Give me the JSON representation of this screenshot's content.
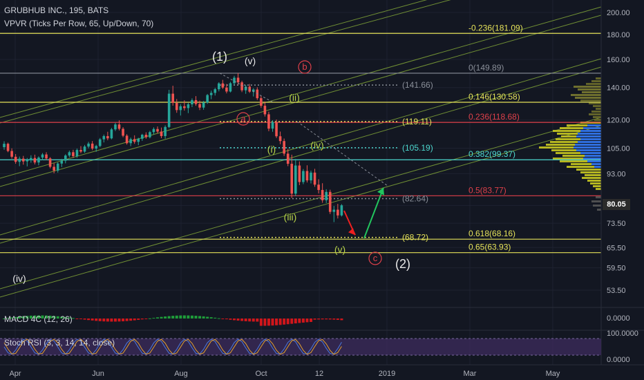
{
  "header": {
    "title": "GRUBHUB INC., 195, BATS",
    "subtitle": "VPVR (Ticks Per Row, 65, Up/Down, 70)"
  },
  "indicators": {
    "macd_label": "MACD 4C (12, 26)",
    "stoch_label": "Stoch RSI (3, 3, 14, 14, close)"
  },
  "colors": {
    "background": "#131722",
    "fib_yellow": "#e6e35a",
    "fib_cyan": "#4dd9d0",
    "fib_red": "#e0404a",
    "channel": "#8fb83a",
    "candle_up": "#26a69a",
    "candle_down": "#ef5350",
    "wave_green": "#b8d44a",
    "arrow_green": "#22c55e",
    "arrow_red": "#ef2020",
    "vpvr_yellow": "#c8c820",
    "vpvr_blue": "#2f6fdf",
    "stoch_bg": "#3b2a5a"
  },
  "current_price": "80.05",
  "chart_data": {
    "type": "candlestick",
    "title": "GRUBHUB INC., 195, BATS",
    "price_axis": {
      "ticks": [
        "200.00",
        "180.00",
        "160.00",
        "140.00",
        "120.00",
        "105.00",
        "93.00",
        "80.00",
        "73.50",
        "65.50",
        "59.50",
        "53.50"
      ],
      "scale": "log",
      "range": [
        50,
        210
      ]
    },
    "time_axis": {
      "ticks": [
        "Apr",
        "Jun",
        "Aug",
        "Oct",
        "12",
        "2019",
        "Mar",
        "May"
      ]
    },
    "macd_axis": {
      "ticks": [
        "0.0000"
      ]
    },
    "stoch_axis": {
      "ticks": [
        "100.0000",
        "0.0000"
      ]
    },
    "fib_levels": [
      {
        "label": "-0.236(181.09)",
        "price": 181.09,
        "color": "fib_yellow"
      },
      {
        "label": "0(149.89)",
        "price": 149.89,
        "color": "gray"
      },
      {
        "label": "0.146(130.58)",
        "price": 130.58,
        "color": "fib_yellow"
      },
      {
        "label": "0.236(118.68)",
        "price": 118.68,
        "color": "fib_red"
      },
      {
        "label": "0.382(99.37)",
        "price": 99.37,
        "color": "fib_cyan"
      },
      {
        "label": "0.5(83.77)",
        "price": 83.77,
        "color": "fib_red"
      },
      {
        "label": "0.618(68.16)",
        "price": 68.16,
        "color": "fib_yellow"
      },
      {
        "label": "0.65(63.93)",
        "price": 63.93,
        "color": "fib_yellow"
      }
    ],
    "dotted_levels": [
      {
        "label": "(141.66)",
        "price": 141.66,
        "color": "gray"
      },
      {
        "label": "(119.11)",
        "price": 119.11,
        "color": "fib_yellow"
      },
      {
        "label": "(105.19)",
        "price": 105.19,
        "color": "fib_cyan"
      },
      {
        "label": "(82.64)",
        "price": 82.64,
        "color": "gray"
      },
      {
        "label": "(68.72)",
        "price": 68.72,
        "color": "fib_yellow"
      }
    ],
    "wave_labels": [
      {
        "text": "(1)",
        "color": "white"
      },
      {
        "text": "(v)",
        "color": "white"
      },
      {
        "text": "b",
        "color": "red-circle"
      },
      {
        "text": "a",
        "color": "red-circle"
      },
      {
        "text": "(ii)",
        "color": "green"
      },
      {
        "text": "(i)",
        "color": "green"
      },
      {
        "text": "(iv)",
        "color": "green"
      },
      {
        "text": "(iii)",
        "color": "green"
      },
      {
        "text": "(v)",
        "color": "green"
      },
      {
        "text": "c",
        "color": "red-circle"
      },
      {
        "text": "(2)",
        "color": "white"
      },
      {
        "text": "(iv)",
        "color": "white"
      }
    ],
    "candles": [
      [
        0,
        105.5,
        108.5,
        104.2,
        107.2
      ],
      [
        1,
        107.2,
        107.8,
        103.0,
        103.6
      ],
      [
        2,
        103.6,
        104.9,
        99.9,
        100.8
      ],
      [
        3,
        100.8,
        102.1,
        97.5,
        98.4
      ],
      [
        4,
        98.4,
        100.9,
        96.4,
        99.9
      ],
      [
        5,
        99.9,
        101.2,
        97.1,
        98.6
      ],
      [
        6,
        98.6,
        100.2,
        96.3,
        99.1
      ],
      [
        7,
        99.1,
        101.5,
        98.0,
        100.2
      ],
      [
        8,
        100.2,
        101.8,
        97.2,
        98.1
      ],
      [
        9,
        98.1,
        101.0,
        96.8,
        100.4
      ],
      [
        10,
        100.4,
        102.6,
        99.2,
        101.9
      ],
      [
        11,
        101.9,
        103.0,
        99.3,
        100.0
      ],
      [
        12,
        100.0,
        100.6,
        95.4,
        96.1
      ],
      [
        13,
        96.1,
        97.8,
        93.2,
        94.4
      ],
      [
        14,
        94.4,
        98.2,
        93.5,
        97.6
      ],
      [
        15,
        97.6,
        99.8,
        96.0,
        98.9
      ],
      [
        16,
        98.9,
        102.0,
        97.7,
        101.4
      ],
      [
        17,
        101.4,
        103.8,
        100.5,
        103.0
      ],
      [
        18,
        103.0,
        104.2,
        100.2,
        101.1
      ],
      [
        19,
        101.1,
        104.8,
        100.3,
        104.1
      ],
      [
        20,
        104.1,
        106.0,
        102.5,
        103.3
      ],
      [
        21,
        103.3,
        106.6,
        102.7,
        105.8
      ],
      [
        22,
        105.8,
        108.2,
        104.9,
        107.3
      ],
      [
        23,
        107.3,
        108.6,
        104.0,
        104.8
      ],
      [
        24,
        104.8,
        106.7,
        103.2,
        106.1
      ],
      [
        25,
        106.1,
        110.2,
        105.5,
        109.5
      ],
      [
        26,
        109.5,
        112.0,
        107.9,
        111.2
      ],
      [
        27,
        111.2,
        113.5,
        109.0,
        110.0
      ],
      [
        28,
        110.0,
        115.6,
        109.5,
        114.8
      ],
      [
        29,
        114.8,
        118.4,
        113.9,
        117.5
      ],
      [
        30,
        117.5,
        119.8,
        114.2,
        115.1
      ],
      [
        31,
        115.1,
        116.0,
        110.6,
        111.4
      ],
      [
        32,
        111.4,
        112.2,
        106.8,
        107.5
      ],
      [
        33,
        107.5,
        110.4,
        106.0,
        109.6
      ],
      [
        34,
        109.6,
        111.6,
        107.2,
        108.2
      ],
      [
        35,
        108.2,
        110.3,
        106.5,
        109.8
      ],
      [
        36,
        109.8,
        112.4,
        108.7,
        111.9
      ],
      [
        37,
        111.9,
        113.2,
        109.8,
        110.6
      ],
      [
        38,
        110.6,
        114.0,
        110.0,
        113.3
      ],
      [
        39,
        113.3,
        115.9,
        112.1,
        115.0
      ],
      [
        40,
        115.0,
        116.4,
        112.7,
        113.6
      ],
      [
        41,
        113.6,
        115.8,
        110.1,
        111.2
      ],
      [
        42,
        111.2,
        117.0,
        109.8,
        116.1
      ],
      [
        43,
        116.1,
        138.5,
        115.5,
        136.0
      ],
      [
        44,
        136.0,
        141.2,
        128.5,
        130.2
      ],
      [
        45,
        130.2,
        132.6,
        124.2,
        125.8
      ],
      [
        46,
        125.8,
        129.4,
        122.6,
        128.1
      ],
      [
        47,
        128.1,
        131.8,
        125.5,
        127.0
      ],
      [
        48,
        127.0,
        130.2,
        124.0,
        129.3
      ],
      [
        49,
        129.3,
        133.0,
        127.6,
        131.9
      ],
      [
        50,
        131.9,
        134.4,
        128.4,
        129.5
      ],
      [
        51,
        129.5,
        131.6,
        125.8,
        127.3
      ],
      [
        52,
        127.3,
        131.4,
        126.0,
        130.4
      ],
      [
        53,
        130.4,
        135.8,
        129.6,
        135.1
      ],
      [
        54,
        135.1,
        138.0,
        132.5,
        136.5
      ],
      [
        55,
        136.5,
        139.8,
        134.8,
        138.9
      ],
      [
        56,
        138.9,
        143.6,
        137.5,
        142.8
      ],
      [
        57,
        142.8,
        145.2,
        139.1,
        140.0
      ],
      [
        58,
        140.0,
        142.4,
        136.2,
        137.4
      ],
      [
        59,
        137.4,
        143.8,
        136.8,
        142.9
      ],
      [
        60,
        142.9,
        148.0,
        141.6,
        146.7
      ],
      [
        61,
        146.7,
        149.9,
        142.0,
        143.5
      ],
      [
        62,
        143.5,
        144.6,
        137.0,
        138.2
      ],
      [
        63,
        138.2,
        141.8,
        135.9,
        140.6
      ],
      [
        64,
        140.6,
        142.4,
        136.5,
        137.3
      ],
      [
        65,
        137.3,
        139.6,
        134.2,
        138.7
      ],
      [
        66,
        138.7,
        140.2,
        132.0,
        133.1
      ],
      [
        67,
        133.1,
        134.6,
        127.2,
        128.4
      ],
      [
        68,
        128.4,
        131.0,
        122.0,
        123.3
      ],
      [
        69,
        123.3,
        124.8,
        113.8,
        115.2
      ],
      [
        70,
        115.2,
        119.9,
        113.5,
        118.9
      ],
      [
        71,
        118.9,
        120.3,
        110.2,
        111.1
      ],
      [
        72,
        111.1,
        113.6,
        107.0,
        108.6
      ],
      [
        73,
        108.6,
        109.9,
        101.2,
        102.3
      ],
      [
        74,
        102.3,
        104.6,
        96.4,
        97.5
      ],
      [
        75,
        97.5,
        101.8,
        82.9,
        84.6
      ],
      [
        76,
        84.6,
        99.8,
        83.6,
        96.7
      ],
      [
        77,
        96.7,
        98.6,
        88.1,
        89.4
      ],
      [
        78,
        89.4,
        95.1,
        88.5,
        94.2
      ],
      [
        79,
        94.2,
        96.8,
        89.2,
        90.1
      ],
      [
        80,
        90.1,
        94.4,
        88.8,
        93.5
      ],
      [
        81,
        93.5,
        95.2,
        87.4,
        88.3
      ],
      [
        82,
        88.3,
        90.6,
        84.7,
        86.1
      ],
      [
        83,
        86.1,
        88.9,
        81.0,
        82.0
      ],
      [
        84,
        82.0,
        86.4,
        80.9,
        85.3
      ],
      [
        85,
        85.3,
        86.2,
        76.8,
        77.6
      ],
      [
        86,
        77.6,
        79.8,
        73.9,
        78.4
      ],
      [
        87,
        78.4,
        80.6,
        75.2,
        76.3
      ],
      [
        88,
        76.3,
        80.5,
        75.9,
        80.05
      ]
    ]
  }
}
